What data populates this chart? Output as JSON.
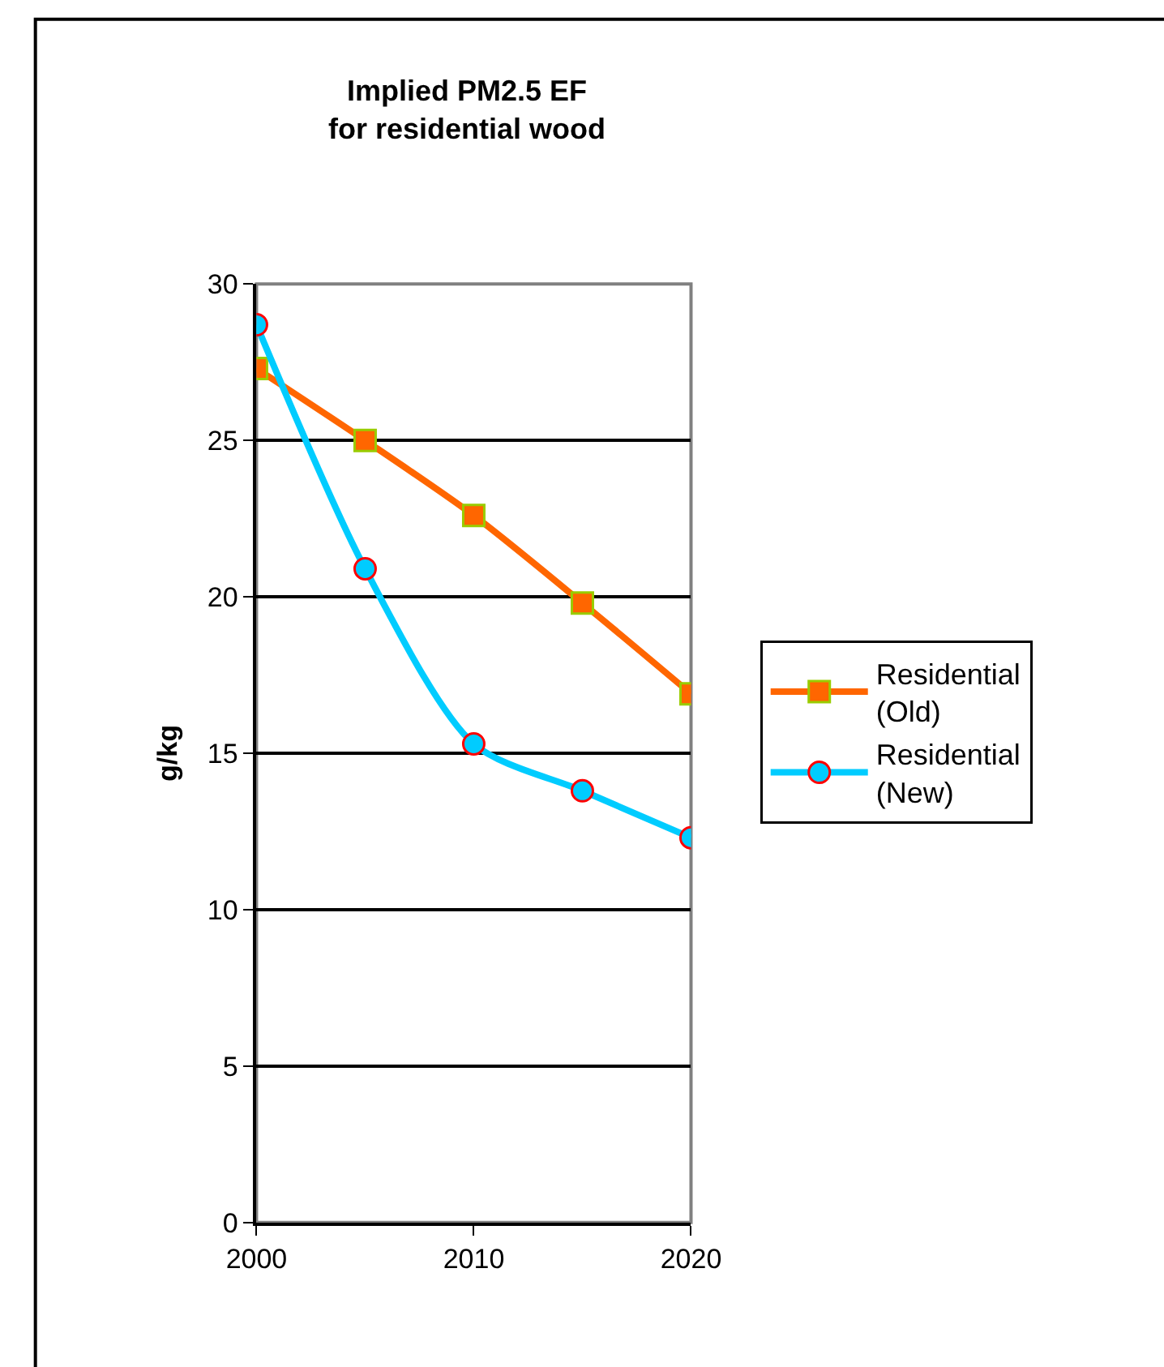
{
  "chart_data": {
    "type": "line",
    "title": "Implied PM2.5 EF\nfor residential wood",
    "ylabel": "g/kg",
    "x": [
      2000,
      2005,
      2010,
      2015,
      2020
    ],
    "series": [
      {
        "name": "Residential (Old)",
        "color": "#ff6600",
        "marker": "square",
        "values": [
          27.3,
          25.0,
          22.6,
          19.8,
          16.9
        ]
      },
      {
        "name": "Residential (New)",
        "color": "#00ccff",
        "marker": "circle",
        "values": [
          28.7,
          20.9,
          15.3,
          13.8,
          12.3
        ]
      }
    ],
    "xlim": [
      2000,
      2020
    ],
    "xticks": [
      2000,
      2010,
      2020
    ],
    "ylim": [
      0,
      30
    ],
    "yticks": [
      0,
      5,
      10,
      15,
      20,
      25,
      30
    ],
    "grid": "y",
    "legend": "right"
  }
}
